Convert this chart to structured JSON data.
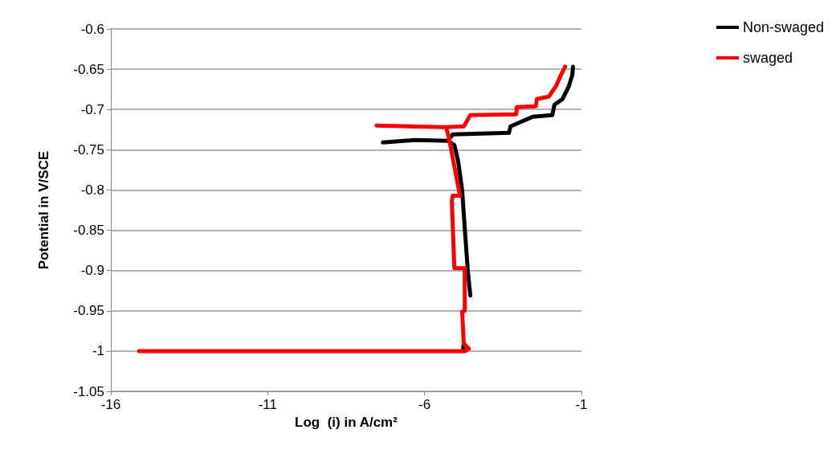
{
  "chart_data": {
    "type": "line",
    "xlabel": "Log  (i) in A/cm²",
    "ylabel": "Potential in V/SCE",
    "xlim": [
      -16,
      -1
    ],
    "xticks": [
      -16,
      -11,
      -6,
      -1
    ],
    "ylim": [
      -1.05,
      -0.6
    ],
    "yticks": [
      -1.05,
      -1,
      -0.95,
      -0.9,
      -0.85,
      -0.8,
      -0.75,
      -0.7,
      -0.65,
      -0.6
    ],
    "grid": "y",
    "legend": "right",
    "marker": "none",
    "line_style": "solid",
    "series": [
      {
        "name": "Non-swaged",
        "color": "#000000",
        "x": [
          -4.77,
          -4.75,
          null,
          -4.54,
          -4.62,
          -4.72,
          -4.8,
          -4.93,
          -5.05,
          -5.26,
          -6.3,
          -7.33,
          null,
          -5.26,
          -5.1,
          -3.31,
          -3.26,
          -2.55,
          -1.93,
          -1.86,
          -1.6,
          -1.4,
          -1.29,
          -1.27
        ],
        "values": [
          -0.997,
          -0.99,
          null,
          -0.931,
          -0.901,
          -0.847,
          -0.801,
          -0.764,
          -0.744,
          -0.739,
          -0.738,
          -0.741,
          null,
          -0.739,
          -0.731,
          -0.729,
          -0.721,
          -0.709,
          -0.707,
          -0.694,
          -0.687,
          -0.671,
          -0.657,
          -0.647
        ]
      },
      {
        "name": "swaged",
        "color": "#ff0000",
        "x": [
          -15.1,
          -4.7,
          -4.59,
          -4.75,
          -4.8,
          -4.72,
          -4.72,
          -5.05,
          -5.13,
          -5.1,
          -4.87,
          -5.23,
          -5.31,
          -7.53,
          null,
          -5.31,
          -4.75,
          -4.54,
          -3.08,
          -3.06,
          -2.45,
          -2.42,
          -2.04,
          -1.81,
          -1.65,
          -1.52
        ],
        "values": [
          -1.0,
          -1.0,
          -0.997,
          -0.991,
          -0.951,
          -0.95,
          -0.897,
          -0.897,
          -0.814,
          -0.807,
          -0.807,
          -0.734,
          -0.722,
          -0.72,
          null,
          -0.722,
          -0.721,
          -0.707,
          -0.706,
          -0.697,
          -0.696,
          -0.687,
          -0.684,
          -0.671,
          -0.657,
          -0.647
        ]
      }
    ]
  }
}
